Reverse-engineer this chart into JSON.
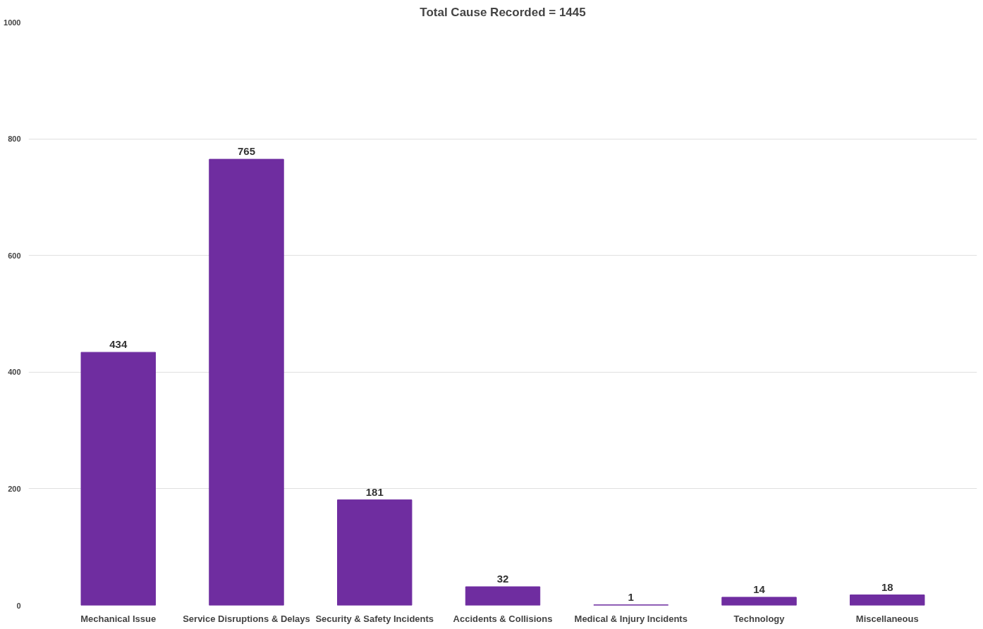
{
  "chart_data": {
    "type": "bar",
    "title": "Total Cause Recorded = 1445",
    "categories": [
      "Mechanical Issue",
      "Service Disruptions & Delays",
      "Security & Safety Incidents",
      "Accidents & Collisions",
      "Medical & Injury Incidents",
      "Technology",
      "Miscellaneous"
    ],
    "values": [
      434,
      765,
      181,
      32,
      1,
      14,
      18
    ],
    "color": "#6f2da0",
    "ylim": [
      0,
      1000
    ],
    "yticks": [
      0,
      200,
      400,
      600,
      800,
      1000
    ],
    "grid": "y",
    "data_labels": true
  }
}
